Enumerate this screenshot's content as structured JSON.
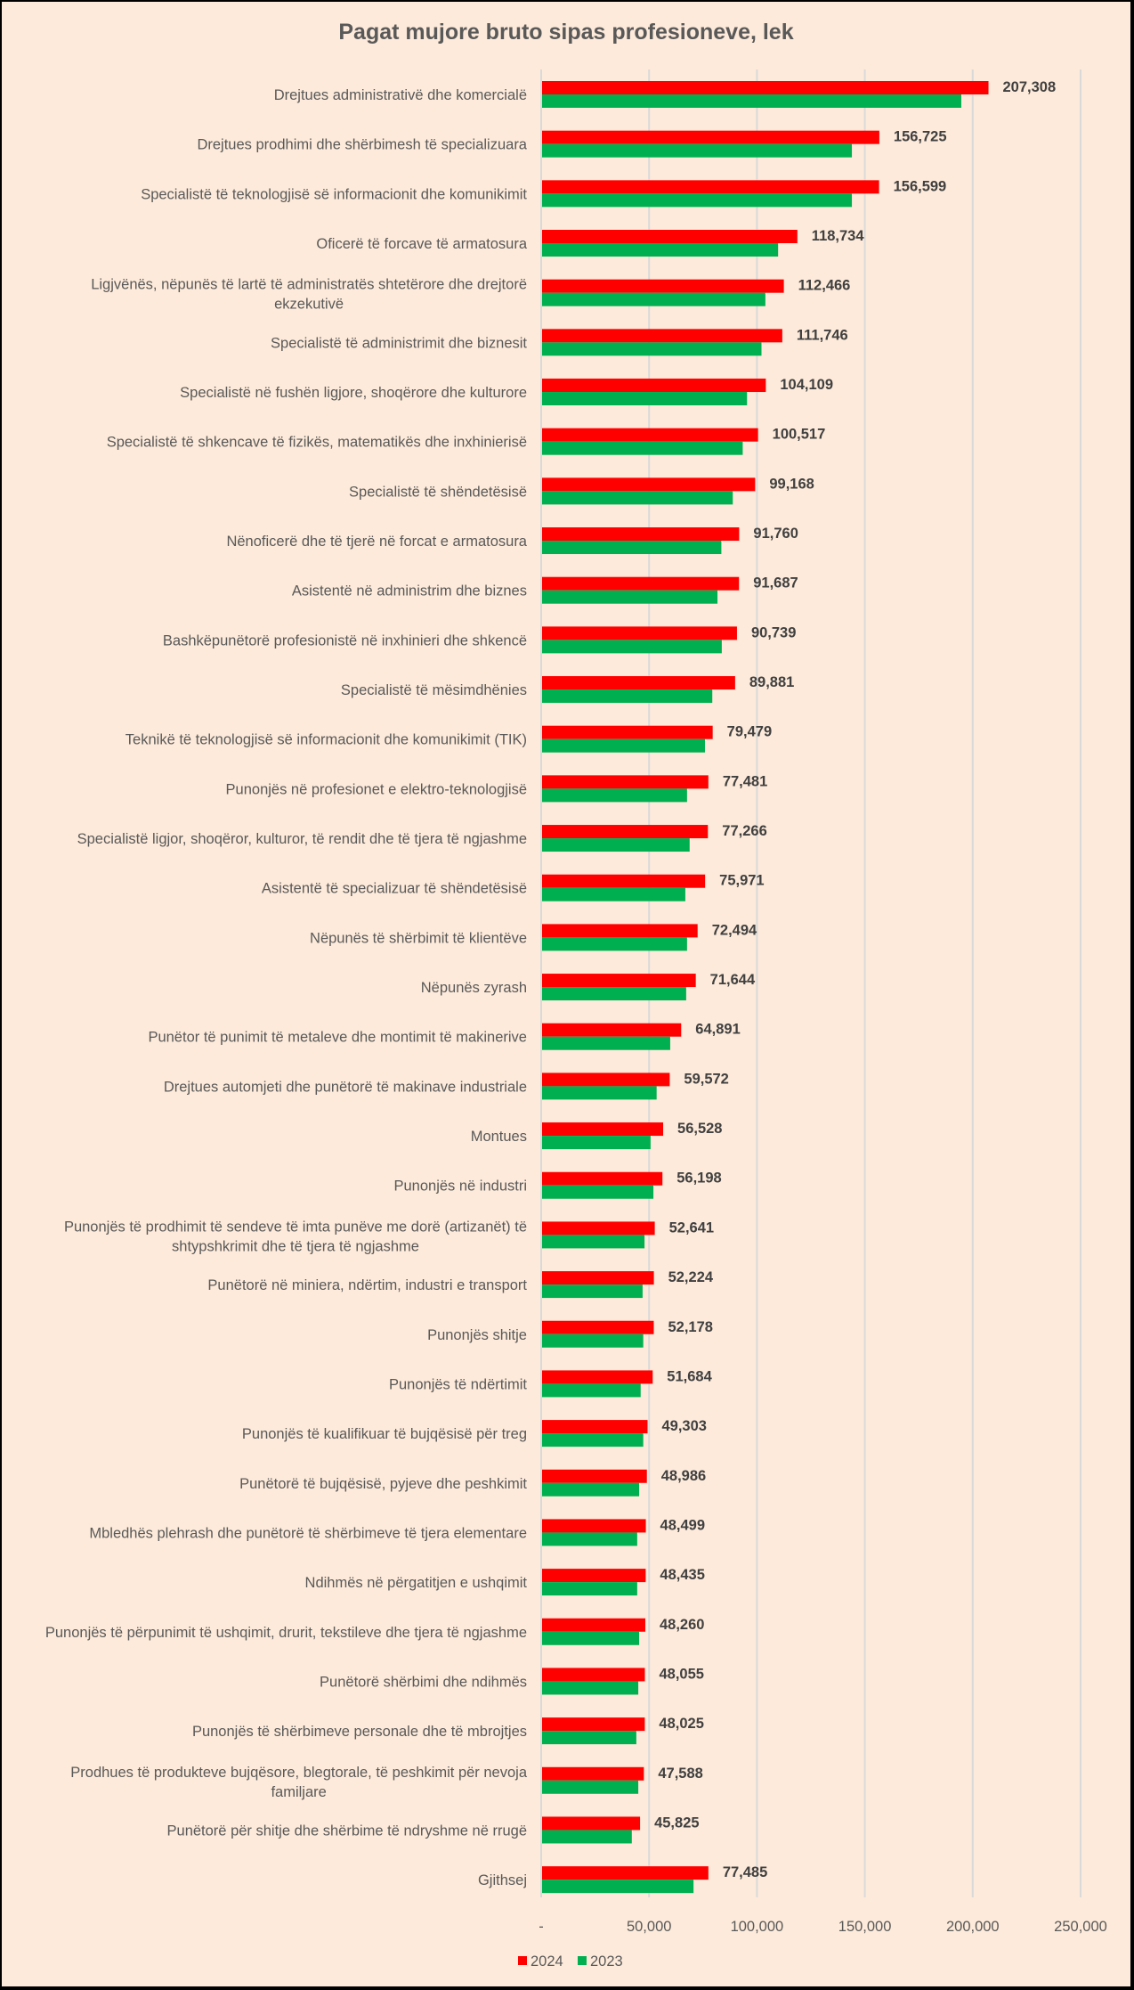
{
  "chart_data": {
    "type": "bar",
    "orientation": "horizontal",
    "title": "Pagat mujore bruto sipas profesioneve, lek",
    "xlabel": "",
    "ylabel": "",
    "xlim": [
      0,
      250000
    ],
    "x_ticks": [
      0,
      50000,
      100000,
      150000,
      200000,
      250000
    ],
    "x_tick_labels": [
      "-",
      "50,000",
      "100,000",
      "150,000",
      "200,000",
      "250,000"
    ],
    "grid": "vertical",
    "legend_position": "bottom-left",
    "categories": [
      [
        "Drejtues administrativë dhe komercialë"
      ],
      [
        "Drejtues prodhimi dhe shërbimesh të specializuara"
      ],
      [
        "Specialistë të teknologjisë së informacionit dhe komunikimit"
      ],
      [
        "Oficerë të forcave të armatosura"
      ],
      [
        "Ligjvënës, nëpunës të lartë të administratës shtetërore dhe drejtorë",
        "ekzekutivë"
      ],
      [
        "Specialistë të administrimit dhe biznesit"
      ],
      [
        "Specialistë në fushën ligjore, shoqërore dhe kulturore"
      ],
      [
        "Specialistë të shkencave të fizikës, matematikës dhe inxhinierisë"
      ],
      [
        "Specialistë të shëndetësisë"
      ],
      [
        "Nënoficerë dhe të tjerë në forcat e armatosura"
      ],
      [
        "Asistentë në administrim dhe biznes"
      ],
      [
        "Bashkëpunëtorë profesionistë në inxhinieri dhe shkencë"
      ],
      [
        "Specialistë të mësimdhënies"
      ],
      [
        "Teknikë të teknologjisë së informacionit dhe komunikimit (TIK)"
      ],
      [
        "Punonjës në profesionet e elektro-teknologjisë"
      ],
      [
        "Specialistë ligjor, shoqëror, kulturor, të rendit dhe të tjera të ngjashme"
      ],
      [
        "Asistentë të specializuar të shëndetësisë"
      ],
      [
        "Nëpunës të shërbimit të klientëve"
      ],
      [
        "Nëpunës zyrash"
      ],
      [
        "Punëtor të punimit të metaleve dhe montimit të makinerive"
      ],
      [
        "Drejtues automjeti dhe punëtorë të makinave industriale"
      ],
      [
        "Montues"
      ],
      [
        "Punonjës në industri"
      ],
      [
        "Punonjës të prodhimit të sendeve të imta punëve me dorë (artizanët) të",
        "shtypshkrimit dhe të tjera të ngjashme"
      ],
      [
        "Punëtorë në miniera, ndërtim, industri e transport"
      ],
      [
        "Punonjës shitje"
      ],
      [
        "Punonjës të ndërtimit"
      ],
      [
        "Punonjës të kualifikuar të bujqësisë për treg"
      ],
      [
        "Punëtorë të bujqësisë, pyjeve dhe peshkimit"
      ],
      [
        "Mbledhës plehrash dhe punëtorë të shërbimeve të tjera elementare"
      ],
      [
        "Ndihmës në përgatitjen e ushqimit"
      ],
      [
        "Punonjës të përpunimit të ushqimit, drurit, tekstileve dhe tjera të ngjashme"
      ],
      [
        "Punëtorë shërbimi dhe ndihmës"
      ],
      [
        "Punonjës të shërbimeve personale dhe të mbrojtjes"
      ],
      [
        "Prodhues të produkteve bujqësore, blegtorale, të peshkimit për nevoja",
        "familjare"
      ],
      [
        "Punëtorë për shitje dhe shërbime të ndryshme në rrugë"
      ],
      [
        "Gjithsej"
      ]
    ],
    "series": [
      {
        "name": "2024",
        "color": "#FF0000",
        "values": [
          207308,
          156725,
          156599,
          118734,
          112466,
          111746,
          104109,
          100517,
          99168,
          91760,
          91687,
          90739,
          89881,
          79479,
          77481,
          77266,
          75971,
          72494,
          71644,
          64891,
          59572,
          56528,
          56198,
          52641,
          52224,
          52178,
          51684,
          49303,
          48986,
          48499,
          48435,
          48260,
          48055,
          48025,
          47588,
          45825,
          77485
        ],
        "data_labels": [
          "207,308",
          "156,725",
          "156,599",
          "118,734",
          "112,466",
          "111,746",
          "104,109",
          "100,517",
          "99,168",
          "91,760",
          "91,687",
          "90,739",
          "89,881",
          "79,479",
          "77,481",
          "77,266",
          "75,971",
          "72,494",
          "71,644",
          "64,891",
          "59,572",
          "56,528",
          "56,198",
          "52,641",
          "52,224",
          "52,178",
          "51,684",
          "49,303",
          "48,986",
          "48,499",
          "48,435",
          "48,260",
          "48,055",
          "48,025",
          "47,588",
          "45,825",
          "77,485"
        ]
      },
      {
        "name": "2023",
        "color": "#00B050",
        "values": [
          194700,
          144000,
          144000,
          109800,
          103900,
          102100,
          95400,
          93400,
          88800,
          83500,
          81700,
          83700,
          79300,
          75900,
          67600,
          68800,
          66800,
          67600,
          67200,
          59800,
          53500,
          50700,
          52000,
          47900,
          47000,
          47300,
          46100,
          47300,
          45400,
          44500,
          44500,
          45400,
          45000,
          44100,
          45000,
          42000,
          70600
        ]
      }
    ]
  }
}
